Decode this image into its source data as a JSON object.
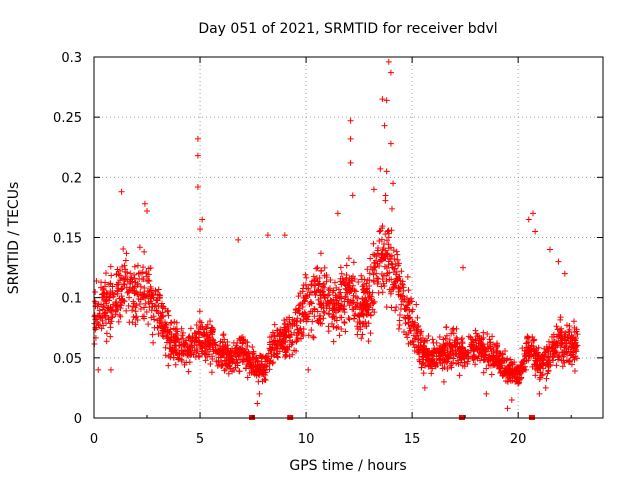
{
  "chart_data": {
    "type": "scatter",
    "title": "Day 051 of 2021, SRMTID for receiver bdvl",
    "xlabel": "GPS time / hours",
    "ylabel": "SRMTID / TECUs",
    "xlim": [
      0,
      24
    ],
    "ylim": [
      0,
      0.3
    ],
    "x_ticks": [
      0,
      5,
      10,
      15,
      20
    ],
    "y_ticks": [
      0,
      0.05,
      0.1,
      0.15,
      0.2,
      0.25,
      0.3
    ],
    "x_tick_labels": [
      "0",
      "5",
      "10",
      "15",
      "20"
    ],
    "y_tick_labels": [
      "0",
      "0.05",
      "0.1",
      "0.15",
      "0.2",
      "0.25",
      "0.3"
    ],
    "grid": true,
    "marker": "+",
    "marker_color": "#ff0000",
    "series": [
      {
        "name": "SRMTID",
        "trend": [
          [
            0.0,
            0.085
          ],
          [
            0.5,
            0.095
          ],
          [
            1.0,
            0.1
          ],
          [
            1.5,
            0.115
          ],
          [
            2.0,
            0.1
          ],
          [
            2.5,
            0.11
          ],
          [
            3.0,
            0.09
          ],
          [
            3.5,
            0.07
          ],
          [
            4.0,
            0.06
          ],
          [
            4.5,
            0.055
          ],
          [
            5.0,
            0.07
          ],
          [
            5.5,
            0.06
          ],
          [
            6.0,
            0.055
          ],
          [
            6.5,
            0.05
          ],
          [
            7.0,
            0.055
          ],
          [
            7.5,
            0.045
          ],
          [
            8.0,
            0.04
          ],
          [
            8.5,
            0.06
          ],
          [
            9.0,
            0.065
          ],
          [
            9.5,
            0.075
          ],
          [
            10.0,
            0.095
          ],
          [
            10.5,
            0.1
          ],
          [
            11.0,
            0.1
          ],
          [
            11.5,
            0.09
          ],
          [
            12.0,
            0.11
          ],
          [
            12.5,
            0.09
          ],
          [
            13.0,
            0.1
          ],
          [
            13.5,
            0.14
          ],
          [
            14.0,
            0.13
          ],
          [
            14.5,
            0.1
          ],
          [
            15.0,
            0.08
          ],
          [
            15.5,
            0.055
          ],
          [
            16.0,
            0.05
          ],
          [
            16.5,
            0.055
          ],
          [
            17.0,
            0.06
          ],
          [
            17.5,
            0.05
          ],
          [
            18.0,
            0.06
          ],
          [
            18.5,
            0.055
          ],
          [
            19.0,
            0.05
          ],
          [
            19.5,
            0.04
          ],
          [
            20.0,
            0.035
          ],
          [
            20.5,
            0.06
          ],
          [
            21.0,
            0.045
          ],
          [
            21.5,
            0.05
          ],
          [
            22.0,
            0.065
          ],
          [
            22.5,
            0.06
          ],
          [
            22.8,
            0.06
          ]
        ],
        "spikes": [
          [
            4.9,
            0.232
          ],
          [
            4.9,
            0.218
          ],
          [
            4.9,
            0.192
          ],
          [
            5.0,
            0.157
          ],
          [
            5.1,
            0.165
          ],
          [
            12.1,
            0.247
          ],
          [
            12.1,
            0.232
          ],
          [
            12.1,
            0.212
          ],
          [
            12.2,
            0.185
          ],
          [
            13.9,
            0.296
          ],
          [
            14.0,
            0.287
          ],
          [
            13.6,
            0.265
          ],
          [
            13.8,
            0.264
          ],
          [
            13.7,
            0.243
          ],
          [
            14.0,
            0.228
          ],
          [
            13.8,
            0.205
          ],
          [
            14.1,
            0.195
          ],
          [
            13.5,
            0.207
          ],
          [
            13.2,
            0.19
          ],
          [
            11.5,
            0.17
          ],
          [
            1.3,
            0.188
          ],
          [
            2.4,
            0.178
          ],
          [
            2.5,
            0.172
          ],
          [
            6.8,
            0.148
          ],
          [
            8.2,
            0.152
          ],
          [
            9.0,
            0.152
          ],
          [
            17.4,
            0.125
          ],
          [
            20.5,
            0.165
          ],
          [
            20.7,
            0.17
          ],
          [
            20.8,
            0.155
          ],
          [
            21.9,
            0.13
          ],
          [
            22.2,
            0.12
          ],
          [
            21.5,
            0.14
          ],
          [
            0.2,
            0.04
          ],
          [
            0.8,
            0.04
          ],
          [
            7.7,
            0.012
          ],
          [
            7.8,
            0.02
          ],
          [
            15.6,
            0.025
          ],
          [
            19.5,
            0.008
          ],
          [
            19.7,
            0.015
          ],
          [
            18.5,
            0.02
          ],
          [
            21.3,
            0.025
          ],
          [
            21.0,
            0.02
          ],
          [
            10.1,
            0.04
          ],
          [
            16.5,
            0.03
          ]
        ],
        "gaps": [
          7.45,
          9.25,
          17.35,
          20.65
        ]
      }
    ]
  }
}
